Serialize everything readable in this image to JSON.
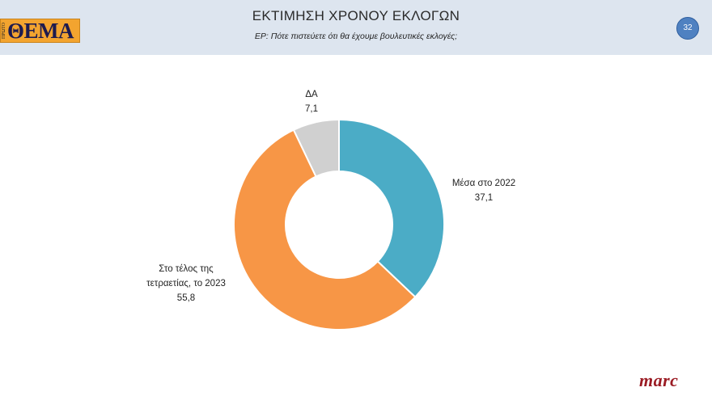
{
  "header": {
    "logo_small": "ΠΡΩΤΟ",
    "logo_text": "ΘΕΜΑ",
    "title": "ΕΚΤΙΜΗΣΗ ΧΡΟΝΟΥ ΕΚΛΟΓΩΝ",
    "subtitle": "ΕΡ:  Πότε πιστεύετε ότι θα έχουμε βουλευτικές εκλογές;",
    "page_number": "32"
  },
  "footer": {
    "brand": "marc"
  },
  "chart_data": {
    "type": "pie",
    "donut": true,
    "categories": [
      "Μέσα στο 2022",
      "Στο τέλος της τετραετίας, το 2023",
      "ΔΑ"
    ],
    "values": [
      37.1,
      55.8,
      7.1
    ],
    "value_labels": [
      "37,1",
      "55,8",
      "7,1"
    ],
    "label_lines": [
      [
        "Μέσα στο 2022"
      ],
      [
        "Στο τέλος της",
        "τετραετίας, το 2023"
      ],
      [
        "ΔΑ"
      ]
    ],
    "colors": [
      "#4bacc6",
      "#f79646",
      "#d0d0d0"
    ],
    "start_angle_deg": 0,
    "direction": "clockwise",
    "legend": "none"
  }
}
